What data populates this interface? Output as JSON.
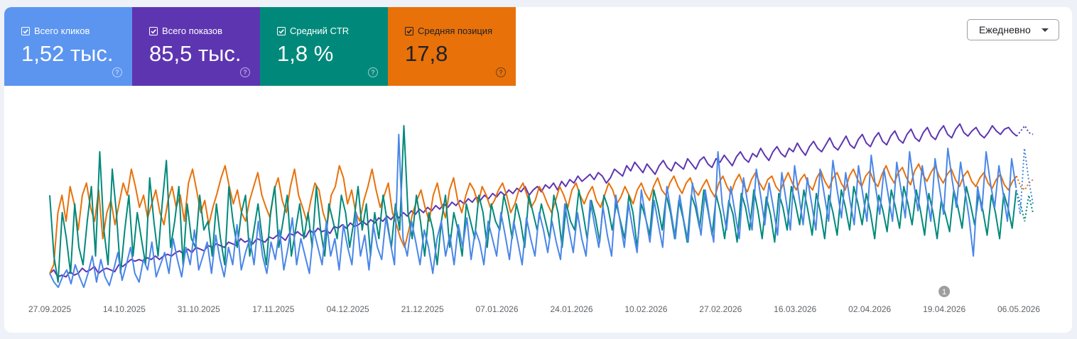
{
  "metrics": [
    {
      "label": "Всего кликов",
      "value": "1,52 тыс.",
      "color": "#5b95f0",
      "text_color": "#ffffff",
      "checked": true,
      "icon": "help-icon"
    },
    {
      "label": "Всего показов",
      "value": "85,5 тыс.",
      "color": "#5e35b1",
      "text_color": "#ffffff",
      "checked": true,
      "icon": "help-icon"
    },
    {
      "label": "Средний CTR",
      "value": "1,8 %",
      "color": "#00897b",
      "text_color": "#ffffff",
      "checked": true,
      "icon": "help-icon"
    },
    {
      "label": "Средняя позиция",
      "value": "17,8",
      "color": "#e8710a",
      "text_color": "#202124",
      "checked": true,
      "icon": "help-icon"
    }
  ],
  "granularity": {
    "selected": "Ежедневно",
    "icon": "caret-down-icon"
  },
  "annotation": {
    "label": "1"
  },
  "chart_data": {
    "type": "line",
    "x_start": "27.09.2025",
    "x_end": "06.05.2026",
    "tick_labels": [
      "27.09.2025",
      "14.10.2025",
      "31.10.2025",
      "17.11.2025",
      "04.12.2025",
      "21.12.2025",
      "07.01.2026",
      "24.01.2026",
      "10.02.2026",
      "27.02.2026",
      "16.03.2026",
      "02.04.2026",
      "19.04.2026",
      "06.05.2026"
    ],
    "annotation_date": "19.04.2026",
    "grid": false,
    "legend": "top tiles",
    "value_scale": "relative, independent per series",
    "series": [
      {
        "name": "Всего показов",
        "color": "#5e35b1",
        "values": [
          0.1,
          0.12,
          0.08,
          0.09,
          0.08,
          0.11,
          0.09,
          0.1,
          0.13,
          0.11,
          0.12,
          0.14,
          0.1,
          0.12,
          0.13,
          0.12,
          0.11,
          0.15,
          0.14,
          0.16,
          0.18,
          0.17,
          0.18,
          0.17,
          0.19,
          0.18,
          0.2,
          0.18,
          0.2,
          0.21,
          0.2,
          0.22,
          0.23,
          0.21,
          0.24,
          0.22,
          0.25,
          0.24,
          0.23,
          0.26,
          0.25,
          0.27,
          0.26,
          0.25,
          0.28,
          0.27,
          0.26,
          0.3,
          0.28,
          0.29,
          0.27,
          0.3,
          0.29,
          0.28,
          0.31,
          0.3,
          0.32,
          0.31,
          0.29,
          0.33,
          0.32,
          0.34,
          0.32,
          0.31,
          0.35,
          0.33,
          0.36,
          0.34,
          0.35,
          0.33,
          0.37,
          0.36,
          0.38,
          0.36,
          0.39,
          0.37,
          0.38,
          0.4,
          0.38,
          0.41,
          0.39,
          0.42,
          0.4,
          0.43,
          0.41,
          0.44,
          0.42,
          0.45,
          0.43,
          0.46,
          0.44,
          0.47,
          0.45,
          0.48,
          0.46,
          0.49,
          0.47,
          0.5,
          0.48,
          0.51,
          0.49,
          0.52,
          0.5,
          0.53,
          0.51,
          0.54,
          0.52,
          0.55,
          0.53,
          0.56,
          0.54,
          0.57,
          0.55,
          0.58,
          0.56,
          0.59,
          0.57,
          0.6,
          0.55,
          0.58,
          0.6,
          0.57,
          0.61,
          0.59,
          0.62,
          0.58,
          0.63,
          0.6,
          0.64,
          0.62,
          0.66,
          0.63,
          0.65,
          0.67,
          0.64,
          0.68,
          0.66,
          0.62,
          0.65,
          0.7,
          0.68,
          0.66,
          0.72,
          0.69,
          0.74,
          0.71,
          0.68,
          0.73,
          0.7,
          0.67,
          0.72,
          0.75,
          0.71,
          0.69,
          0.74,
          0.72,
          0.7,
          0.76,
          0.73,
          0.7,
          0.75,
          0.77,
          0.73,
          0.71,
          0.76,
          0.74,
          0.78,
          0.75,
          0.72,
          0.77,
          0.8,
          0.76,
          0.74,
          0.79,
          0.77,
          0.82,
          0.78,
          0.75,
          0.8,
          0.83,
          0.79,
          0.77,
          0.82,
          0.8,
          0.85,
          0.81,
          0.78,
          0.83,
          0.86,
          0.82,
          0.8,
          0.84,
          0.88,
          0.83,
          0.81,
          0.85,
          0.89,
          0.84,
          0.82,
          0.87,
          0.9,
          0.85,
          0.83,
          0.88,
          0.91,
          0.86,
          0.84,
          0.89,
          0.92,
          0.87,
          0.85,
          0.9,
          0.93,
          0.88,
          0.86,
          0.91,
          0.94,
          0.89,
          0.87,
          0.92,
          0.95,
          0.9,
          0.88,
          0.93,
          0.96,
          0.91,
          0.89,
          0.92,
          0.94,
          0.9,
          0.88,
          0.91,
          0.95,
          0.92,
          0.9,
          0.93,
          0.94,
          0.91,
          0.89,
          0.92,
          0.95,
          0.91,
          0.9
        ]
      },
      {
        "name": "Средняя позиция",
        "color": "#e8710a",
        "values": [
          0.1,
          0.15,
          0.45,
          0.55,
          0.4,
          0.6,
          0.5,
          0.35,
          0.55,
          0.62,
          0.48,
          0.4,
          0.58,
          0.3,
          0.45,
          0.52,
          0.38,
          0.5,
          0.62,
          0.55,
          0.7,
          0.6,
          0.48,
          0.55,
          0.42,
          0.5,
          0.58,
          0.45,
          0.38,
          0.52,
          0.6,
          0.48,
          0.55,
          0.4,
          0.62,
          0.7,
          0.58,
          0.45,
          0.52,
          0.38,
          0.48,
          0.56,
          0.65,
          0.72,
          0.6,
          0.5,
          0.58,
          0.45,
          0.4,
          0.52,
          0.6,
          0.68,
          0.55,
          0.48,
          0.42,
          0.58,
          0.65,
          0.52,
          0.45,
          0.6,
          0.7,
          0.55,
          0.48,
          0.4,
          0.52,
          0.62,
          0.58,
          0.45,
          0.38,
          0.55,
          0.6,
          0.72,
          0.65,
          0.5,
          0.58,
          0.45,
          0.4,
          0.52,
          0.6,
          0.7,
          0.58,
          0.48,
          0.55,
          0.62,
          0.45,
          0.38,
          0.3,
          0.25,
          0.35,
          0.45,
          0.52,
          0.58,
          0.48,
          0.4,
          0.55,
          0.62,
          0.5,
          0.42,
          0.58,
          0.65,
          0.52,
          0.45,
          0.55,
          0.62,
          0.58,
          0.5,
          0.6,
          0.55,
          0.48,
          0.52,
          0.58,
          0.62,
          0.55,
          0.45,
          0.5,
          0.58,
          0.62,
          0.55,
          0.48,
          0.52,
          0.6,
          0.56,
          0.5,
          0.45,
          0.52,
          0.6,
          0.55,
          0.48,
          0.58,
          0.62,
          0.55,
          0.5,
          0.56,
          0.6,
          0.52,
          0.48,
          0.55,
          0.62,
          0.58,
          0.5,
          0.54,
          0.6,
          0.55,
          0.5,
          0.58,
          0.62,
          0.56,
          0.52,
          0.6,
          0.65,
          0.58,
          0.55,
          0.62,
          0.66,
          0.6,
          0.56,
          0.62,
          0.65,
          0.58,
          0.55,
          0.6,
          0.64,
          0.58,
          0.54,
          0.62,
          0.66,
          0.6,
          0.56,
          0.63,
          0.67,
          0.61,
          0.57,
          0.64,
          0.68,
          0.62,
          0.58,
          0.64,
          0.66,
          0.6,
          0.57,
          0.63,
          0.68,
          0.62,
          0.58,
          0.64,
          0.67,
          0.61,
          0.58,
          0.65,
          0.69,
          0.63,
          0.59,
          0.65,
          0.68,
          0.62,
          0.58,
          0.66,
          0.7,
          0.64,
          0.6,
          0.66,
          0.69,
          0.63,
          0.6,
          0.67,
          0.72,
          0.66,
          0.62,
          0.68,
          0.71,
          0.65,
          0.61,
          0.69,
          0.73,
          0.67,
          0.63,
          0.68,
          0.72,
          0.66,
          0.62,
          0.67,
          0.7,
          0.64,
          0.6,
          0.66,
          0.69,
          0.63,
          0.6,
          0.65,
          0.68,
          0.62,
          0.59,
          0.64,
          0.67,
          0.61,
          0.58,
          0.63,
          0.66,
          0.6,
          0.58,
          0.62,
          0.64
        ]
      },
      {
        "name": "Средний CTR",
        "color": "#00897b",
        "values": [
          0.55,
          0.2,
          0.05,
          0.45,
          0.3,
          0.1,
          0.5,
          0.25,
          0.15,
          0.4,
          0.6,
          0.2,
          0.8,
          0.35,
          0.15,
          0.7,
          0.45,
          0.1,
          0.35,
          0.55,
          0.2,
          0.45,
          0.3,
          0.15,
          0.65,
          0.4,
          0.2,
          0.5,
          0.75,
          0.25,
          0.4,
          0.6,
          0.15,
          0.5,
          0.3,
          0.25,
          0.55,
          0.35,
          0.4,
          0.2,
          0.5,
          0.3,
          0.15,
          0.6,
          0.4,
          0.25,
          0.45,
          0.55,
          0.2,
          0.35,
          0.5,
          0.3,
          0.15,
          0.45,
          0.6,
          0.25,
          0.4,
          0.55,
          0.2,
          0.35,
          0.5,
          0.3,
          0.45,
          0.25,
          0.6,
          0.35,
          0.2,
          0.5,
          0.4,
          0.3,
          0.55,
          0.45,
          0.25,
          0.4,
          0.6,
          0.35,
          0.5,
          0.2,
          0.45,
          0.3,
          0.55,
          0.4,
          0.25,
          0.5,
          0.35,
          0.95,
          0.45,
          0.3,
          0.55,
          0.4,
          0.2,
          0.45,
          0.35,
          0.15,
          0.4,
          0.55,
          0.25,
          0.45,
          0.35,
          0.2,
          0.5,
          0.4,
          0.3,
          0.55,
          0.45,
          0.25,
          0.5,
          0.4,
          0.35,
          0.55,
          0.45,
          0.3,
          0.5,
          0.4,
          0.25,
          0.55,
          0.45,
          0.35,
          0.5,
          0.4,
          0.3,
          0.55,
          0.45,
          0.25,
          0.5,
          0.4,
          0.35,
          0.58,
          0.45,
          0.3,
          0.52,
          0.42,
          0.28,
          0.55,
          0.48,
          0.35,
          0.5,
          0.4,
          0.3,
          0.55,
          0.45,
          0.25,
          0.5,
          0.42,
          0.32,
          0.58,
          0.48,
          0.35,
          0.55,
          0.45,
          0.3,
          0.52,
          0.42,
          0.28,
          0.55,
          0.48,
          0.36,
          0.58,
          0.46,
          0.32,
          0.55,
          0.45,
          0.3,
          0.52,
          0.44,
          0.28,
          0.56,
          0.48,
          0.35,
          0.58,
          0.46,
          0.3,
          0.54,
          0.44,
          0.28,
          0.56,
          0.48,
          0.35,
          0.6,
          0.5,
          0.38,
          0.58,
          0.46,
          0.32,
          0.56,
          0.45,
          0.3,
          0.55,
          0.45,
          0.32,
          0.58,
          0.48,
          0.35,
          0.6,
          0.5,
          0.38,
          0.56,
          0.45,
          0.3,
          0.55,
          0.46,
          0.34,
          0.58,
          0.48,
          0.36,
          0.6,
          0.5,
          0.38,
          0.58,
          0.46,
          0.32,
          0.56,
          0.45,
          0.3,
          0.52,
          0.44,
          0.34,
          0.58,
          0.48,
          0.36,
          0.6,
          0.5,
          0.38,
          0.56,
          0.46,
          0.32,
          0.55,
          0.45,
          0.3,
          0.56,
          0.48,
          0.36,
          0.58,
          0.5,
          0.4,
          0.55,
          0.45
        ]
      },
      {
        "name": "Всего кликов",
        "color": "#4a86e8",
        "values": [
          0.1,
          0.05,
          0.02,
          0.08,
          0.12,
          0.04,
          0.15,
          0.08,
          0.02,
          0.1,
          0.2,
          0.05,
          0.18,
          0.08,
          0.03,
          0.12,
          0.22,
          0.06,
          0.15,
          0.25,
          0.1,
          0.05,
          0.18,
          0.12,
          0.28,
          0.08,
          0.15,
          0.22,
          0.1,
          0.3,
          0.18,
          0.08,
          0.25,
          0.15,
          0.35,
          0.12,
          0.2,
          0.28,
          0.1,
          0.32,
          0.18,
          0.08,
          0.25,
          0.15,
          0.38,
          0.12,
          0.22,
          0.3,
          0.15,
          0.4,
          0.2,
          0.1,
          0.28,
          0.18,
          0.35,
          0.12,
          0.25,
          0.42,
          0.15,
          0.3,
          0.2,
          0.1,
          0.35,
          0.25,
          0.15,
          0.4,
          0.2,
          0.3,
          0.12,
          0.38,
          0.25,
          0.15,
          0.45,
          0.2,
          0.32,
          0.12,
          0.38,
          0.25,
          0.18,
          0.42,
          0.28,
          0.15,
          0.9,
          0.3,
          0.2,
          0.4,
          0.28,
          0.15,
          0.35,
          0.25,
          0.1,
          0.3,
          0.4,
          0.2,
          0.32,
          0.15,
          0.38,
          0.25,
          0.42,
          0.18,
          0.35,
          0.28,
          0.15,
          0.4,
          0.3,
          0.2,
          0.45,
          0.32,
          0.18,
          0.4,
          0.28,
          0.15,
          0.42,
          0.3,
          0.2,
          0.45,
          0.35,
          0.22,
          0.4,
          0.28,
          0.18,
          0.5,
          0.35,
          0.22,
          0.45,
          0.3,
          0.2,
          0.52,
          0.38,
          0.25,
          0.48,
          0.32,
          0.2,
          0.55,
          0.4,
          0.25,
          0.5,
          0.35,
          0.22,
          0.58,
          0.42,
          0.28,
          0.52,
          0.38,
          0.25,
          0.6,
          0.45,
          0.3,
          0.55,
          0.4,
          0.28,
          0.62,
          0.48,
          0.32,
          0.58,
          0.42,
          0.28,
          0.8,
          0.5,
          0.35,
          0.6,
          0.45,
          0.3,
          0.65,
          0.5,
          0.35,
          0.7,
          0.55,
          0.38,
          0.62,
          0.48,
          0.32,
          0.68,
          0.52,
          0.35,
          0.72,
          0.55,
          0.38,
          0.65,
          0.5,
          0.35,
          0.7,
          0.55,
          0.4,
          0.75,
          0.58,
          0.42,
          0.68,
          0.52,
          0.38,
          0.72,
          0.56,
          0.4,
          0.78,
          0.6,
          0.44,
          0.7,
          0.55,
          0.4,
          0.74,
          0.58,
          0.42,
          0.8,
          0.62,
          0.46,
          0.72,
          0.56,
          0.4,
          0.76,
          0.6,
          0.44,
          0.82,
          0.64,
          0.48,
          0.74,
          0.58,
          0.42,
          0.2,
          0.6,
          0.46,
          0.8,
          0.62,
          0.48,
          0.72,
          0.56,
          0.4,
          0.76,
          0.6,
          0.44,
          0.82,
          0.64,
          0.5
        ]
      }
    ]
  }
}
